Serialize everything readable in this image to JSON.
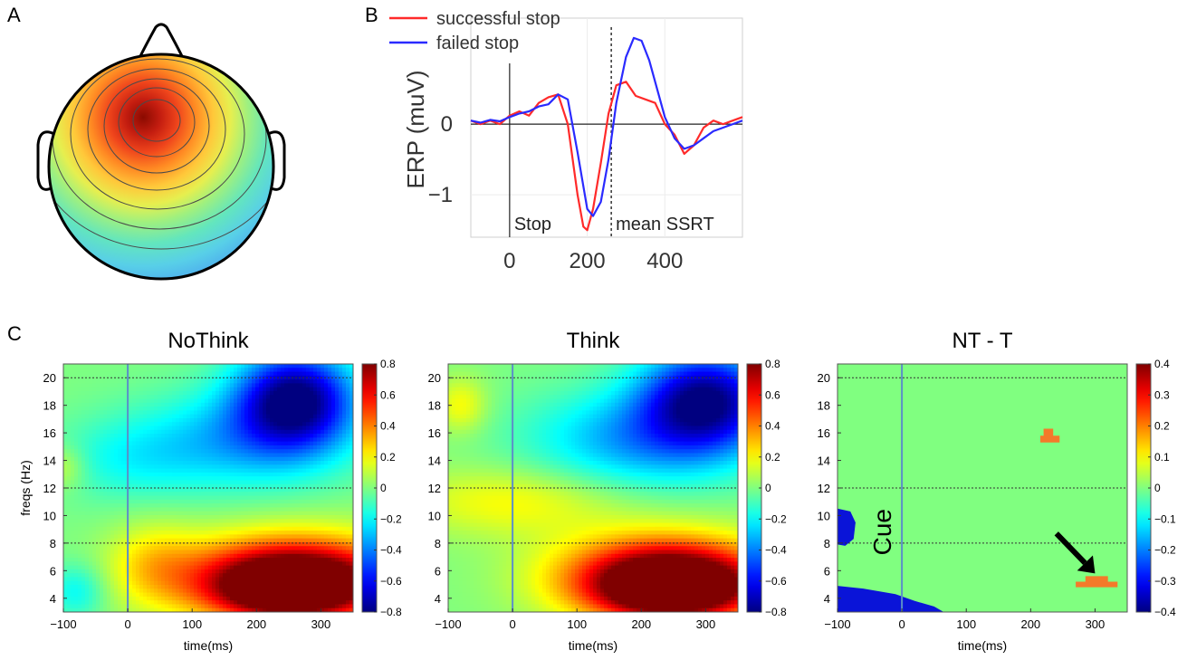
{
  "panels": {
    "A": "A",
    "B": "B",
    "C": "C"
  },
  "chart_data": [
    {
      "id": "A",
      "type": "other",
      "description_label": "",
      "text": []
    },
    {
      "id": "B",
      "type": "line",
      "ylabel": "ERP (muV)",
      "xlabel": "",
      "xlim": [
        -100,
        600
      ],
      "ylim": [
        -1.6,
        1.5
      ],
      "xticks": [
        0,
        200,
        400
      ],
      "yticks": [
        -1,
        0
      ],
      "annotations": [
        "Stop",
        "mean SSRT"
      ],
      "ssrt_x": 262,
      "legend_position": "top-left",
      "series": [
        {
          "name": "successful stop",
          "color": "#ff2a2a",
          "x": [
            -100,
            -75,
            -50,
            -25,
            0,
            25,
            50,
            75,
            100,
            125,
            150,
            175,
            190,
            200,
            215,
            235,
            255,
            275,
            300,
            325,
            350,
            375,
            400,
            425,
            450,
            475,
            500,
            525,
            550,
            575,
            600
          ],
          "y": [
            0.05,
            0.0,
            0.05,
            0.0,
            0.12,
            0.18,
            0.12,
            0.3,
            0.38,
            0.42,
            0.0,
            -1.0,
            -1.45,
            -1.5,
            -1.2,
            -0.55,
            0.15,
            0.55,
            0.6,
            0.4,
            0.35,
            0.3,
            0.0,
            -0.15,
            -0.42,
            -0.3,
            -0.05,
            0.05,
            0.0,
            0.05,
            0.1
          ]
        },
        {
          "name": "failed stop",
          "color": "#2a2aff",
          "x": [
            -100,
            -75,
            -50,
            -25,
            0,
            25,
            50,
            75,
            100,
            125,
            150,
            175,
            200,
            215,
            235,
            255,
            275,
            300,
            320,
            340,
            360,
            380,
            400,
            425,
            450,
            475,
            500,
            525,
            550,
            575,
            600
          ],
          "y": [
            0.05,
            0.02,
            0.06,
            0.04,
            0.1,
            0.15,
            0.18,
            0.25,
            0.28,
            0.42,
            0.35,
            -0.4,
            -1.2,
            -1.3,
            -1.1,
            -0.5,
            0.3,
            0.95,
            1.22,
            1.18,
            0.9,
            0.5,
            0.1,
            -0.2,
            -0.35,
            -0.3,
            -0.2,
            -0.1,
            -0.05,
            0.0,
            0.05
          ]
        }
      ]
    },
    {
      "id": "C1",
      "type": "heatmap",
      "title": "NoThink",
      "xlabel": "time(ms)",
      "ylabel": "freqs (Hz)",
      "xlim": [
        -100,
        350
      ],
      "ylim": [
        3,
        21
      ],
      "xticks": [
        -100,
        0,
        100,
        200,
        300
      ],
      "yticks": [
        4,
        6,
        8,
        10,
        12,
        14,
        16,
        18,
        20
      ],
      "hlines": [
        8,
        12,
        20
      ],
      "vline": 0,
      "clim": [
        -0.8,
        0.8
      ],
      "cbar_ticks": [
        "0.8",
        "0.6",
        "0.4",
        "0.2",
        "0",
        "-0.2",
        "-0.4",
        "-0.6",
        "-0.8"
      ],
      "blobs": [
        {
          "x": 260,
          "y": 18.5,
          "rx": 90,
          "ry": 3.5,
          "v": -0.8
        },
        {
          "x": 180,
          "y": 15.5,
          "rx": 160,
          "ry": 3.5,
          "v": -0.3
        },
        {
          "x": 0,
          "y": 14,
          "rx": 120,
          "ry": 3,
          "v": -0.15
        },
        {
          "x": -100,
          "y": 13.5,
          "rx": 35,
          "ry": 1.6,
          "v": 0.15
        },
        {
          "x": 260,
          "y": 5.5,
          "rx": 170,
          "ry": 3.0,
          "v": 0.9
        },
        {
          "x": 250,
          "y": 4.5,
          "rx": 110,
          "ry": 2.0,
          "v": 0.6
        },
        {
          "x": 40,
          "y": 6.5,
          "rx": 70,
          "ry": 3.0,
          "v": 0.2
        },
        {
          "x": -80,
          "y": 4.5,
          "rx": 45,
          "ry": 2.0,
          "v": -0.2
        }
      ]
    },
    {
      "id": "C2",
      "type": "heatmap",
      "title": "Think",
      "xlabel": "time(ms)",
      "ylabel": "",
      "xlim": [
        -100,
        350
      ],
      "ylim": [
        3,
        21
      ],
      "xticks": [
        -100,
        0,
        100,
        200,
        300
      ],
      "yticks": [
        4,
        6,
        8,
        10,
        12,
        14,
        16,
        18,
        20
      ],
      "hlines": [
        8,
        12,
        20
      ],
      "vline": 0,
      "clim": [
        -0.8,
        0.8
      ],
      "cbar_ticks": [
        "0.8",
        "0.6",
        "0.4",
        "0.2",
        "0",
        "-0.2",
        "-0.4",
        "-0.6",
        "-0.8"
      ],
      "blobs": [
        {
          "x": 300,
          "y": 18.5,
          "rx": 100,
          "ry": 3.5,
          "v": -0.75
        },
        {
          "x": 200,
          "y": 15.5,
          "rx": 170,
          "ry": 3.5,
          "v": -0.35
        },
        {
          "x": 0,
          "y": 11,
          "rx": 170,
          "ry": 2.5,
          "v": 0.2
        },
        {
          "x": -80,
          "y": 18,
          "rx": 40,
          "ry": 2,
          "v": 0.2
        },
        {
          "x": 240,
          "y": 5.5,
          "rx": 160,
          "ry": 3.0,
          "v": 0.9
        },
        {
          "x": 250,
          "y": 4.5,
          "rx": 110,
          "ry": 2.0,
          "v": 0.6
        }
      ]
    },
    {
      "id": "C3",
      "type": "heatmap",
      "title": "NT - T",
      "xlabel": "time(ms)",
      "ylabel": "",
      "xlim": [
        -100,
        350
      ],
      "ylim": [
        3,
        21
      ],
      "xticks": [
        -100,
        0,
        100,
        200,
        300
      ],
      "yticks": [
        4,
        6,
        8,
        10,
        12,
        14,
        16,
        18,
        20
      ],
      "hlines": [
        8,
        12,
        20
      ],
      "vline": 0,
      "clim": [
        -0.4,
        0.4
      ],
      "cbar_ticks": [
        "0.4",
        "0.3",
        "0.2",
        "0.1",
        "0",
        "-0.1",
        "-0.2",
        "-0.3",
        "-0.4"
      ],
      "annotation": "Cue",
      "background_value": 0,
      "patches": [
        {
          "points": [
            [
              -100,
              10.5
            ],
            [
              -80,
              10.3
            ],
            [
              -72,
              9.5
            ],
            [
              -75,
              8.3
            ],
            [
              -88,
              7.8
            ],
            [
              -100,
              7.9
            ]
          ],
          "v": -0.4
        },
        {
          "points": [
            [
              -100,
              4.9
            ],
            [
              -60,
              4.7
            ],
            [
              -10,
              4.3
            ],
            [
              20,
              3.8
            ],
            [
              50,
              3.4
            ],
            [
              65,
              3
            ],
            [
              -100,
              3
            ]
          ],
          "v": -0.4
        },
        {
          "points": [
            [
              220,
              16.3
            ],
            [
              235,
              16.3
            ],
            [
              235,
              15.8
            ],
            [
              245,
              15.8
            ],
            [
              245,
              15.3
            ],
            [
              215,
              15.3
            ],
            [
              215,
              15.8
            ],
            [
              220,
              15.8
            ]
          ],
          "v": 0.25
        },
        {
          "points": [
            [
              285,
              5.6
            ],
            [
              320,
              5.6
            ],
            [
              320,
              5.2
            ],
            [
              335,
              5.2
            ],
            [
              335,
              4.8
            ],
            [
              270,
              4.8
            ],
            [
              270,
              5.2
            ],
            [
              285,
              5.2
            ]
          ],
          "v": 0.25
        }
      ],
      "arrow": {
        "from": [
          240,
          8.7
        ],
        "to": [
          300,
          5.8
        ]
      }
    }
  ]
}
